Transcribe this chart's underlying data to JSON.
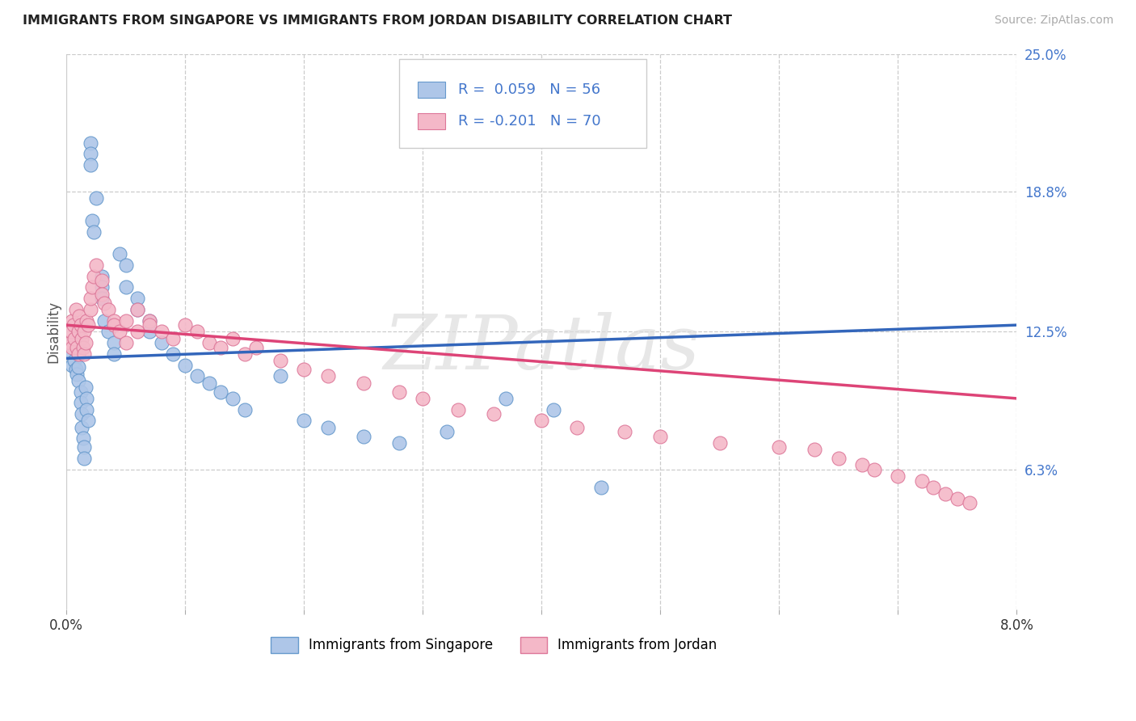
{
  "title": "IMMIGRANTS FROM SINGAPORE VS IMMIGRANTS FROM JORDAN DISABILITY CORRELATION CHART",
  "source": "Source: ZipAtlas.com",
  "ylabel": "Disability",
  "xlim": [
    0.0,
    0.08
  ],
  "ylim": [
    0.0,
    0.25
  ],
  "xtick_positions": [
    0.0,
    0.01,
    0.02,
    0.03,
    0.04,
    0.05,
    0.06,
    0.07,
    0.08
  ],
  "xticklabels": [
    "0.0%",
    "",
    "",
    "",
    "",
    "",
    "",
    "",
    "8.0%"
  ],
  "ytick_labels_right": [
    "6.3%",
    "12.5%",
    "18.8%",
    "25.0%"
  ],
  "ytick_positions_right": [
    0.063,
    0.125,
    0.188,
    0.25
  ],
  "color_singapore_fill": "#aec6e8",
  "color_singapore_edge": "#6699cc",
  "color_jordan_fill": "#f4b8c8",
  "color_jordan_edge": "#dd7799",
  "color_trend_singapore": "#3366bb",
  "color_trend_jordan": "#dd4477",
  "color_axis_right": "#4477cc",
  "color_legend_text": "#4477cc",
  "watermark": "ZIPatlas",
  "singapore_x": [
    0.0005,
    0.0005,
    0.0007,
    0.0008,
    0.0009,
    0.001,
    0.001,
    0.001,
    0.0012,
    0.0012,
    0.0013,
    0.0013,
    0.0014,
    0.0015,
    0.0015,
    0.0016,
    0.0017,
    0.0017,
    0.0018,
    0.002,
    0.002,
    0.002,
    0.0022,
    0.0023,
    0.0025,
    0.003,
    0.003,
    0.003,
    0.0032,
    0.0035,
    0.004,
    0.004,
    0.0045,
    0.005,
    0.005,
    0.006,
    0.006,
    0.007,
    0.007,
    0.008,
    0.009,
    0.01,
    0.011,
    0.012,
    0.013,
    0.014,
    0.015,
    0.018,
    0.02,
    0.022,
    0.025,
    0.028,
    0.032,
    0.037,
    0.041,
    0.045
  ],
  "singapore_y": [
    0.115,
    0.11,
    0.112,
    0.108,
    0.106,
    0.115,
    0.109,
    0.103,
    0.098,
    0.093,
    0.088,
    0.082,
    0.077,
    0.073,
    0.068,
    0.1,
    0.095,
    0.09,
    0.085,
    0.21,
    0.205,
    0.2,
    0.175,
    0.17,
    0.185,
    0.15,
    0.145,
    0.14,
    0.13,
    0.125,
    0.12,
    0.115,
    0.16,
    0.155,
    0.145,
    0.14,
    0.135,
    0.13,
    0.125,
    0.12,
    0.115,
    0.11,
    0.105,
    0.102,
    0.098,
    0.095,
    0.09,
    0.105,
    0.085,
    0.082,
    0.078,
    0.075,
    0.08,
    0.095,
    0.09,
    0.055
  ],
  "jordan_x": [
    0.0003,
    0.0004,
    0.0005,
    0.0005,
    0.0006,
    0.0007,
    0.0008,
    0.0009,
    0.001,
    0.001,
    0.0011,
    0.0012,
    0.0013,
    0.0014,
    0.0015,
    0.0015,
    0.0016,
    0.0017,
    0.0018,
    0.002,
    0.002,
    0.0022,
    0.0023,
    0.0025,
    0.003,
    0.003,
    0.0032,
    0.0035,
    0.004,
    0.004,
    0.0045,
    0.005,
    0.005,
    0.006,
    0.006,
    0.007,
    0.007,
    0.008,
    0.009,
    0.01,
    0.011,
    0.012,
    0.013,
    0.014,
    0.015,
    0.016,
    0.018,
    0.02,
    0.022,
    0.025,
    0.028,
    0.03,
    0.033,
    0.036,
    0.04,
    0.043,
    0.047,
    0.05,
    0.055,
    0.06,
    0.063,
    0.065,
    0.067,
    0.068,
    0.07,
    0.072,
    0.073,
    0.074,
    0.075,
    0.076
  ],
  "jordan_y": [
    0.12,
    0.125,
    0.118,
    0.13,
    0.128,
    0.122,
    0.135,
    0.118,
    0.115,
    0.125,
    0.132,
    0.128,
    0.122,
    0.118,
    0.115,
    0.125,
    0.12,
    0.13,
    0.128,
    0.135,
    0.14,
    0.145,
    0.15,
    0.155,
    0.148,
    0.142,
    0.138,
    0.135,
    0.13,
    0.128,
    0.125,
    0.12,
    0.13,
    0.125,
    0.135,
    0.13,
    0.128,
    0.125,
    0.122,
    0.128,
    0.125,
    0.12,
    0.118,
    0.122,
    0.115,
    0.118,
    0.112,
    0.108,
    0.105,
    0.102,
    0.098,
    0.095,
    0.09,
    0.088,
    0.085,
    0.082,
    0.08,
    0.078,
    0.075,
    0.073,
    0.072,
    0.068,
    0.065,
    0.063,
    0.06,
    0.058,
    0.055,
    0.052,
    0.05,
    0.048
  ]
}
